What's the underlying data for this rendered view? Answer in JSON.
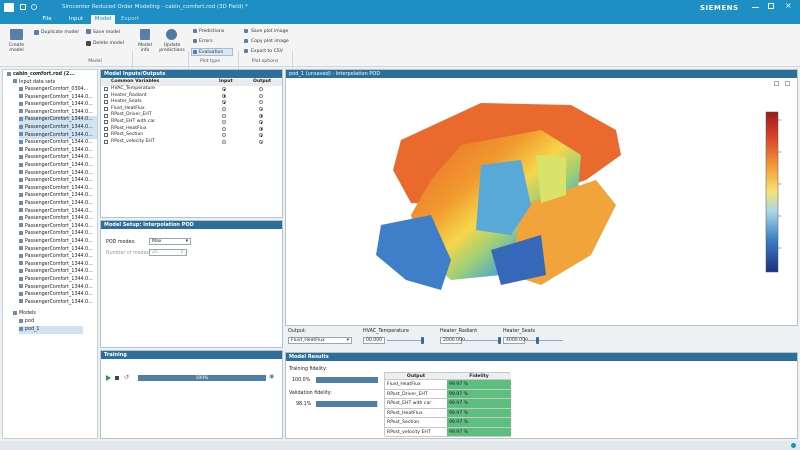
{
  "window": {
    "title": "Simcenter Reduced Order Modeling - cabin_comfort.rod (3D Field) *",
    "brand": "SIEMENS"
  },
  "tabs": [
    {
      "label": "File"
    },
    {
      "label": "Input"
    },
    {
      "label": "Model"
    },
    {
      "label": "Export"
    }
  ],
  "ribbon": {
    "buttons": [
      "Create model",
      "Duplicate model",
      "Delete model",
      "Save model",
      "Model info",
      "Update predictions",
      "Predictions",
      "Errors",
      "Evaluation",
      "Save plot image",
      "Copy plot image",
      "Export to CSV"
    ],
    "groups": [
      "Model",
      "Plot type",
      "Plot options"
    ]
  },
  "tree": {
    "root": "cabin_comfort.rod (2...",
    "input_label": "Input data sets",
    "items": [
      "PassengerComfort_0304...",
      "PassengerComfort_1344.0...",
      "PassengerComfort_1344.0...",
      "PassengerComfort_1344.0...",
      "PassengerComfort_1344.0...",
      "PassengerComfort_1344.0...",
      "PassengerComfort_1344.0...",
      "PassengerComfort_1344.0...",
      "PassengerComfort_1344.0...",
      "PassengerComfort_1344.0...",
      "PassengerComfort_1344.0...",
      "PassengerComfort_1344.0...",
      "PassengerComfort_1344.0...",
      "PassengerComfort_1344.0...",
      "PassengerComfort_1344.0...",
      "PassengerComfort_1344.0...",
      "PassengerComfort_1344.0...",
      "PassengerComfort_1344.0...",
      "PassengerComfort_1344.0...",
      "PassengerComfort_1344.0...",
      "PassengerComfort_1344.0...",
      "PassengerComfort_1344.0...",
      "PassengerComfort_1344.0...",
      "PassengerComfort_1344.0...",
      "PassengerComfort_1344.0...",
      "PassengerComfort_1344.0...",
      "PassengerComfort_1344.0...",
      "PassengerComfort_1344.0...",
      "PassengerComfort_1344.0..."
    ],
    "models_label": "Models",
    "models": [
      "pod",
      "pod_1"
    ]
  },
  "io_panel": {
    "title": "Model Inputs/Outputs",
    "col_var": "Common Variables",
    "col_input": "Input",
    "col_output": "Output",
    "rows": [
      {
        "name": "HVAC_Temperature",
        "input": true
      },
      {
        "name": "Heater_Radiant",
        "input": true
      },
      {
        "name": "Heater_Seats",
        "input": true
      },
      {
        "name": "Fluid_HeatFlux",
        "input": false
      },
      {
        "name": "RPost_Driver_EHT",
        "input": false
      },
      {
        "name": "RPost_EHT with car",
        "input": false
      },
      {
        "name": "RPost_HeatFlux",
        "input": false
      },
      {
        "name": "RPost_Section",
        "input": false
      },
      {
        "name": "RPost_velocity EHT",
        "input": false
      }
    ]
  },
  "setup_panel": {
    "title": "Model Setup: Interpolation POD",
    "pod_modes_label": "POD modes:",
    "pod_modes_value": "Max",
    "num_modes_label": "Number of modes:",
    "num_modes_value": "25"
  },
  "training": {
    "title": "Training",
    "progress": "100%",
    "progress_fraction": 1.0
  },
  "view": {
    "title": "pod_1 (unsaved) - Interpolation POD"
  },
  "controls": {
    "output_label": "Output:",
    "output_value": "Fluid_HeatFlux",
    "sliders": [
      {
        "label": "HVAC_Temperature",
        "value": "00.000",
        "fraction": 1.0
      },
      {
        "label": "Heater_Radiant",
        "value": "2000.000",
        "fraction": 1.0
      },
      {
        "label": "Heater_Seats",
        "value": "4000.000",
        "fraction": 0.25
      }
    ]
  },
  "results": {
    "title": "Model Results",
    "training_fidelity_label": "Training fidelity:",
    "training_fidelity": "100.0%",
    "training_fraction": 1.0,
    "validation_fidelity_label": "Validation fidelity:",
    "validation_fidelity": "98.1%",
    "validation_fraction": 0.981,
    "col_output": "Output",
    "col_fidelity": "Fidelity",
    "rows": [
      {
        "output": "Fluid_HeatFlux",
        "fidelity": "99.97 %"
      },
      {
        "output": "RPost_Driver_EHT",
        "fidelity": "99.97 %"
      },
      {
        "output": "RPost_EHT with car",
        "fidelity": "99.97 %"
      },
      {
        "output": "RPost_HeatFlux",
        "fidelity": "99.97 %"
      },
      {
        "output": "RPost_Section",
        "fidelity": "99.97 %"
      },
      {
        "output": "RPost_velocity EHT",
        "fidelity": "99.97 %"
      }
    ]
  },
  "colors": {
    "accent": "#1d8fc2",
    "panel_header": "#2b6f9a",
    "fidelity_green": "#5cbf7d"
  }
}
